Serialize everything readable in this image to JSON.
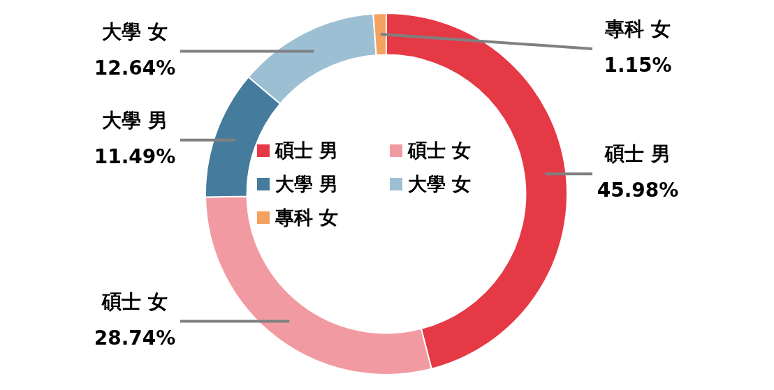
{
  "chart_data": {
    "type": "donut",
    "categories": [
      "碩士 男",
      "碩士 女",
      "大學 男",
      "大學 女",
      "專科 女"
    ],
    "values": [
      45.98,
      28.74,
      11.49,
      12.64,
      1.15
    ],
    "colors": [
      "#e63946",
      "#f29aa1",
      "#457b9d",
      "#9dbfd4",
      "#f4a261"
    ],
    "value_labels": [
      "45.98%",
      "28.74%",
      "11.49%",
      "12.64%",
      "1.15%"
    ],
    "legend": "center"
  }
}
